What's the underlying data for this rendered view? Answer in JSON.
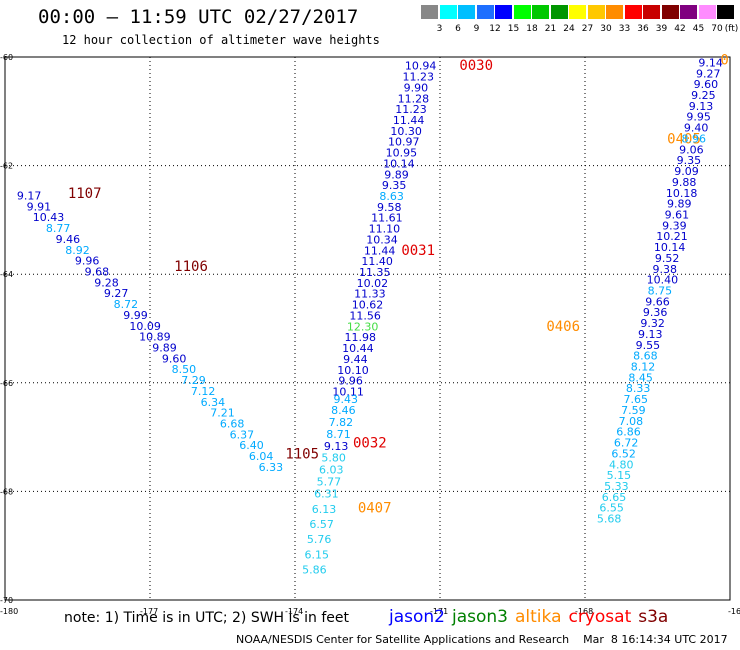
{
  "title": "00:00 – 11:59 UTC 02/27/2017",
  "subtitle": "12 hour collection of altimeter wave heights",
  "scale": {
    "unit": "(ft)",
    "labels": [
      "3",
      "6",
      "9",
      "12",
      "15",
      "18",
      "21",
      "24",
      "27",
      "30",
      "33",
      "36",
      "39",
      "42",
      "45",
      "70"
    ],
    "colors": [
      "#888888",
      "#00ffff",
      "#00bfff",
      "#1e6fff",
      "#0000ff",
      "#00ff00",
      "#00c800",
      "#009600",
      "#ffff00",
      "#ffc800",
      "#ff8c00",
      "#ff0000",
      "#c80000",
      "#800000",
      "#800080",
      "#ff8cff",
      "#000000"
    ]
  },
  "note": "note: 1) Time is in UTC; 2) SWH is in feet",
  "legend": [
    {
      "name": "jason2",
      "color": "#0000ff"
    },
    {
      "name": "jason3",
      "color": "#008000"
    },
    {
      "name": "altika",
      "color": "#ff8c00"
    },
    {
      "name": "cryosat",
      "color": "#ff0000"
    },
    {
      "name": "s3a",
      "color": "#800000"
    }
  ],
  "credit": "NOAA/NESDIS Center for Satellite Applications and Research    Mar  8 16:14:34 UTC 2017",
  "axes": {
    "lon_labels": [
      {
        "v": -180,
        "t": "-180"
      },
      {
        "v": -177,
        "t": "-177"
      },
      {
        "v": -174,
        "t": "-174"
      },
      {
        "v": -171,
        "t": "-171"
      },
      {
        "v": -168,
        "t": "-168"
      },
      {
        "v": -165,
        "t": "-16"
      }
    ],
    "lat_labels": [
      {
        "v": -60,
        "t": "-60"
      },
      {
        "v": -62,
        "t": "-62"
      },
      {
        "v": -64,
        "t": "-64"
      },
      {
        "v": -66,
        "t": "-66"
      },
      {
        "v": -68,
        "t": "-68"
      },
      {
        "v": -70,
        "t": "-70"
      }
    ]
  },
  "pass_labels": [
    {
      "text": "0030",
      "color": "#e00000",
      "lon": -170.6,
      "lat": -60.15
    },
    {
      "text": "0031",
      "color": "#e00000",
      "lon": -171.8,
      "lat": -63.55
    },
    {
      "text": "0032",
      "color": "#e00000",
      "lon": -172.8,
      "lat": -67.1
    },
    {
      "text": "0405",
      "color": "#ff8c00",
      "lon": -166.3,
      "lat": -61.5
    },
    {
      "text": "0406",
      "color": "#ff8c00",
      "lon": -168.8,
      "lat": -64.95
    },
    {
      "text": "0407",
      "color": "#ff8c00",
      "lon": -172.7,
      "lat": -68.3
    },
    {
      "text": "1107",
      "color": "#800000",
      "lon": -178.7,
      "lat": -62.5
    },
    {
      "text": "1106",
      "color": "#800000",
      "lon": -176.5,
      "lat": -63.85
    },
    {
      "text": "1105",
      "color": "#800000",
      "lon": -174.2,
      "lat": -67.3
    },
    {
      "text": "0",
      "color": "#ff8c00",
      "lon": -165.2,
      "lat": -60.05
    }
  ],
  "wave_heights": [
    {
      "t": "10.94",
      "c": "#0000cc",
      "lon": -171.4,
      "lat": -60.16
    },
    {
      "t": "11.23",
      "c": "#0000cc",
      "lon": -171.45,
      "lat": -60.36
    },
    {
      "t": "9.90",
      "c": "#0000cc",
      "lon": -171.5,
      "lat": -60.56
    },
    {
      "t": "11.28",
      "c": "#0000cc",
      "lon": -171.55,
      "lat": -60.76
    },
    {
      "t": "11.23",
      "c": "#0000cc",
      "lon": -171.6,
      "lat": -60.96
    },
    {
      "t": "11.44",
      "c": "#0000cc",
      "lon": -171.65,
      "lat": -61.16
    },
    {
      "t": "10.30",
      "c": "#0000cc",
      "lon": -171.7,
      "lat": -61.36
    },
    {
      "t": "10.97",
      "c": "#0000cc",
      "lon": -171.75,
      "lat": -61.56
    },
    {
      "t": "10.95",
      "c": "#0000cc",
      "lon": -171.8,
      "lat": -61.76
    },
    {
      "t": "10.14",
      "c": "#0000cc",
      "lon": -171.85,
      "lat": -61.96
    },
    {
      "t": "9.89",
      "c": "#0000cc",
      "lon": -171.9,
      "lat": -62.16
    },
    {
      "t": "9.35",
      "c": "#0000cc",
      "lon": -171.95,
      "lat": -62.36
    },
    {
      "t": "8.63",
      "c": "#00aaff",
      "lon": -172.0,
      "lat": -62.56
    },
    {
      "t": "9.58",
      "c": "#0000cc",
      "lon": -172.05,
      "lat": -62.76
    },
    {
      "t": "11.61",
      "c": "#0000cc",
      "lon": -172.1,
      "lat": -62.96
    },
    {
      "t": "11.10",
      "c": "#0000cc",
      "lon": -172.15,
      "lat": -63.16
    },
    {
      "t": "10.34",
      "c": "#0000cc",
      "lon": -172.2,
      "lat": -63.36
    },
    {
      "t": "11.44",
      "c": "#0000cc",
      "lon": -172.25,
      "lat": -63.56
    },
    {
      "t": "11.40",
      "c": "#0000cc",
      "lon": -172.3,
      "lat": -63.76
    },
    {
      "t": "11.35",
      "c": "#0000cc",
      "lon": -172.35,
      "lat": -63.96
    },
    {
      "t": "10.02",
      "c": "#0000cc",
      "lon": -172.4,
      "lat": -64.16
    },
    {
      "t": "11.33",
      "c": "#0000cc",
      "lon": -172.45,
      "lat": -64.36
    },
    {
      "t": "10.62",
      "c": "#0000cc",
      "lon": -172.5,
      "lat": -64.56
    },
    {
      "t": "11.56",
      "c": "#0000cc",
      "lon": -172.55,
      "lat": -64.76
    },
    {
      "t": "12.30",
      "c": "#44dd44",
      "lon": -172.6,
      "lat": -64.96
    },
    {
      "t": "11.98",
      "c": "#0000cc",
      "lon": -172.65,
      "lat": -65.16
    },
    {
      "t": "10.44",
      "c": "#0000cc",
      "lon": -172.7,
      "lat": -65.36
    },
    {
      "t": "9.44",
      "c": "#0000cc",
      "lon": -172.75,
      "lat": -65.56
    },
    {
      "t": "10.10",
      "c": "#0000cc",
      "lon": -172.8,
      "lat": -65.76
    },
    {
      "t": "9.96",
      "c": "#0000cc",
      "lon": -172.85,
      "lat": -65.96
    },
    {
      "t": "10.11",
      "c": "#0000cc",
      "lon": -172.9,
      "lat": -66.16
    },
    {
      "t": "9.43",
      "c": "#00aaff",
      "lon": -172.95,
      "lat": -66.3
    },
    {
      "t": "8.46",
      "c": "#00aaff",
      "lon": -173.0,
      "lat": -66.5
    },
    {
      "t": "7.82",
      "c": "#00aaff",
      "lon": -173.05,
      "lat": -66.72
    },
    {
      "t": "8.71",
      "c": "#00aaff",
      "lon": -173.1,
      "lat": -66.94
    },
    {
      "t": "9.13",
      "c": "#0000cc",
      "lon": -173.15,
      "lat": -67.16
    },
    {
      "t": "5.80",
      "c": "#22ccee",
      "lon": -173.2,
      "lat": -67.38
    },
    {
      "t": "6.03",
      "c": "#22ccee",
      "lon": -173.25,
      "lat": -67.6
    },
    {
      "t": "5.77",
      "c": "#22ccee",
      "lon": -173.3,
      "lat": -67.82
    },
    {
      "t": "6.31",
      "c": "#22ccee",
      "lon": -173.35,
      "lat": -68.04
    },
    {
      "t": "6.13",
      "c": "#22ccee",
      "lon": -173.4,
      "lat": -68.32
    },
    {
      "t": "6.57",
      "c": "#22ccee",
      "lon": -173.45,
      "lat": -68.6
    },
    {
      "t": "5.76",
      "c": "#22ccee",
      "lon": -173.5,
      "lat": -68.88
    },
    {
      "t": "6.15",
      "c": "#22ccee",
      "lon": -173.55,
      "lat": -69.16
    },
    {
      "t": "5.86",
      "c": "#22ccee",
      "lon": -173.6,
      "lat": -69.44
    },
    {
      "t": "9.14",
      "c": "#0000cc",
      "lon": -165.4,
      "lat": -60.1
    },
    {
      "t": "9.27",
      "c": "#0000cc",
      "lon": -165.45,
      "lat": -60.3
    },
    {
      "t": "9.60",
      "c": "#0000cc",
      "lon": -165.5,
      "lat": -60.5
    },
    {
      "t": "9.25",
      "c": "#0000cc",
      "lon": -165.55,
      "lat": -60.7
    },
    {
      "t": "9.13",
      "c": "#0000cc",
      "lon": -165.6,
      "lat": -60.9
    },
    {
      "t": "9.95",
      "c": "#0000cc",
      "lon": -165.65,
      "lat": -61.1
    },
    {
      "t": "9.40",
      "c": "#0000cc",
      "lon": -165.7,
      "lat": -61.3
    },
    {
      "t": "8.96",
      "c": "#00aaff",
      "lon": -165.75,
      "lat": -61.5
    },
    {
      "t": "9.06",
      "c": "#0000cc",
      "lon": -165.8,
      "lat": -61.7
    },
    {
      "t": "9.35",
      "c": "#0000cc",
      "lon": -165.85,
      "lat": -61.9
    },
    {
      "t": "9.09",
      "c": "#0000cc",
      "lon": -165.9,
      "lat": -62.1
    },
    {
      "t": "9.88",
      "c": "#0000cc",
      "lon": -165.95,
      "lat": -62.3
    },
    {
      "t": "10.18",
      "c": "#0000cc",
      "lon": -166.0,
      "lat": -62.5
    },
    {
      "t": "9.89",
      "c": "#0000cc",
      "lon": -166.05,
      "lat": -62.7
    },
    {
      "t": "9.61",
      "c": "#0000cc",
      "lon": -166.1,
      "lat": -62.9
    },
    {
      "t": "9.39",
      "c": "#0000cc",
      "lon": -166.15,
      "lat": -63.1
    },
    {
      "t": "10.21",
      "c": "#0000cc",
      "lon": -166.2,
      "lat": -63.3
    },
    {
      "t": "10.14",
      "c": "#0000cc",
      "lon": -166.25,
      "lat": -63.5
    },
    {
      "t": "9.52",
      "c": "#0000cc",
      "lon": -166.3,
      "lat": -63.7
    },
    {
      "t": "9.38",
      "c": "#0000cc",
      "lon": -166.35,
      "lat": -63.9
    },
    {
      "t": "10.40",
      "c": "#0000cc",
      "lon": -166.4,
      "lat": -64.1
    },
    {
      "t": "8.75",
      "c": "#00aaff",
      "lon": -166.45,
      "lat": -64.3
    },
    {
      "t": "9.66",
      "c": "#0000cc",
      "lon": -166.5,
      "lat": -64.5
    },
    {
      "t": "9.36",
      "c": "#0000cc",
      "lon": -166.55,
      "lat": -64.7
    },
    {
      "t": "9.32",
      "c": "#0000cc",
      "lon": -166.6,
      "lat": -64.9
    },
    {
      "t": "9.13",
      "c": "#0000cc",
      "lon": -166.65,
      "lat": -65.1
    },
    {
      "t": "9.55",
      "c": "#0000cc",
      "lon": -166.7,
      "lat": -65.3
    },
    {
      "t": "8.68",
      "c": "#00aaff",
      "lon": -166.75,
      "lat": -65.5
    },
    {
      "t": "8.12",
      "c": "#00aaff",
      "lon": -166.8,
      "lat": -65.7
    },
    {
      "t": "8.45",
      "c": "#00aaff",
      "lon": -166.85,
      "lat": -65.9
    },
    {
      "t": "8.33",
      "c": "#00aaff",
      "lon": -166.9,
      "lat": -66.1
    },
    {
      "t": "7.65",
      "c": "#00aaff",
      "lon": -166.95,
      "lat": -66.3
    },
    {
      "t": "7.59",
      "c": "#00aaff",
      "lon": -167.0,
      "lat": -66.5
    },
    {
      "t": "7.08",
      "c": "#00aaff",
      "lon": -167.05,
      "lat": -66.7
    },
    {
      "t": "6.86",
      "c": "#00aaff",
      "lon": -167.1,
      "lat": -66.9
    },
    {
      "t": "6.72",
      "c": "#00aaff",
      "lon": -167.15,
      "lat": -67.1
    },
    {
      "t": "6.52",
      "c": "#00aaff",
      "lon": -167.2,
      "lat": -67.3
    },
    {
      "t": "4.80",
      "c": "#22ccee",
      "lon": -167.25,
      "lat": -67.5
    },
    {
      "t": "5.15",
      "c": "#22ccee",
      "lon": -167.3,
      "lat": -67.7
    },
    {
      "t": "5.33",
      "c": "#22ccee",
      "lon": -167.35,
      "lat": -67.9
    },
    {
      "t": "6.65",
      "c": "#22ccee",
      "lon": -167.4,
      "lat": -68.1
    },
    {
      "t": "6.55",
      "c": "#22ccee",
      "lon": -167.45,
      "lat": -68.3
    },
    {
      "t": "5.68",
      "c": "#22ccee",
      "lon": -167.5,
      "lat": -68.5
    },
    {
      "t": "9.17",
      "c": "#0000cc",
      "lon": -179.5,
      "lat": -62.55
    },
    {
      "t": "9.91",
      "c": "#0000cc",
      "lon": -179.3,
      "lat": -62.75
    },
    {
      "t": "10.43",
      "c": "#0000cc",
      "lon": -179.1,
      "lat": -62.95
    },
    {
      "t": "8.77",
      "c": "#00aaff",
      "lon": -178.9,
      "lat": -63.15
    },
    {
      "t": "9.46",
      "c": "#0000cc",
      "lon": -178.7,
      "lat": -63.35
    },
    {
      "t": "8.92",
      "c": "#00aaff",
      "lon": -178.5,
      "lat": -63.55
    },
    {
      "t": "9.96",
      "c": "#0000cc",
      "lon": -178.3,
      "lat": -63.75
    },
    {
      "t": "9.68",
      "c": "#0000cc",
      "lon": -178.1,
      "lat": -63.95
    },
    {
      "t": "9.28",
      "c": "#0000cc",
      "lon": -177.9,
      "lat": -64.15
    },
    {
      "t": "9.27",
      "c": "#0000cc",
      "lon": -177.7,
      "lat": -64.35
    },
    {
      "t": "8.72",
      "c": "#00aaff",
      "lon": -177.5,
      "lat": -64.55
    },
    {
      "t": "9.99",
      "c": "#0000cc",
      "lon": -177.3,
      "lat": -64.75
    },
    {
      "t": "10.09",
      "c": "#0000cc",
      "lon": -177.1,
      "lat": -64.95
    },
    {
      "t": "10.89",
      "c": "#0000cc",
      "lon": -176.9,
      "lat": -65.15
    },
    {
      "t": "9.89",
      "c": "#0000cc",
      "lon": -176.7,
      "lat": -65.35
    },
    {
      "t": "9.60",
      "c": "#0000cc",
      "lon": -176.5,
      "lat": -65.55
    },
    {
      "t": "8.50",
      "c": "#00aaff",
      "lon": -176.3,
      "lat": -65.75
    },
    {
      "t": "7.29",
      "c": "#00aaff",
      "lon": -176.1,
      "lat": -65.95
    },
    {
      "t": "7.12",
      "c": "#00aaff",
      "lon": -175.9,
      "lat": -66.15
    },
    {
      "t": "6.34",
      "c": "#00aaff",
      "lon": -175.7,
      "lat": -66.35
    },
    {
      "t": "7.21",
      "c": "#00aaff",
      "lon": -175.5,
      "lat": -66.55
    },
    {
      "t": "6.68",
      "c": "#00aaff",
      "lon": -175.3,
      "lat": -66.75
    },
    {
      "t": "6.37",
      "c": "#00aaff",
      "lon": -175.1,
      "lat": -66.95
    },
    {
      "t": "6.40",
      "c": "#00aaff",
      "lon": -174.9,
      "lat": -67.15
    },
    {
      "t": "6.04",
      "c": "#00aaff",
      "lon": -174.7,
      "lat": -67.35
    },
    {
      "t": "6.33",
      "c": "#00aaff",
      "lon": -174.5,
      "lat": -67.55
    }
  ]
}
